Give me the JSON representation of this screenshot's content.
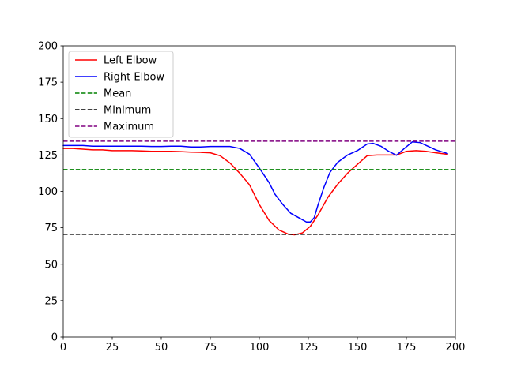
{
  "chart_data": {
    "type": "line",
    "title": "",
    "xlabel": "",
    "ylabel": "",
    "xlim": [
      0,
      200
    ],
    "ylim": [
      0,
      200
    ],
    "xticks": [
      0,
      25,
      50,
      75,
      100,
      125,
      150,
      175,
      200
    ],
    "yticks": [
      0,
      25,
      50,
      75,
      100,
      125,
      150,
      175,
      200
    ],
    "grid": false,
    "legend_position": "upper-left",
    "series": [
      {
        "name": "Left Elbow",
        "color": "#ff0000",
        "style": "solid",
        "x": [
          0,
          5,
          10,
          15,
          20,
          25,
          30,
          35,
          40,
          45,
          50,
          55,
          60,
          65,
          70,
          75,
          80,
          85,
          90,
          95,
          100,
          105,
          110,
          115,
          118,
          122,
          126,
          130,
          135,
          140,
          145,
          150,
          155,
          160,
          165,
          170,
          175,
          180,
          185,
          190,
          196
        ],
        "values": [
          129.5,
          129.5,
          129,
          128.5,
          128.5,
          128,
          128,
          128,
          127.8,
          127.5,
          127.5,
          127.5,
          127.3,
          127,
          126.8,
          126.5,
          124.5,
          119.5,
          112.5,
          104.5,
          91,
          80,
          73.5,
          70.5,
          70.2,
          71.5,
          76,
          84,
          96,
          105,
          112.5,
          118.5,
          124.5,
          125,
          125,
          125,
          127.5,
          128,
          127.5,
          126.5,
          125.5
        ]
      },
      {
        "name": "Right Elbow",
        "color": "#0000ff",
        "style": "solid",
        "x": [
          0,
          5,
          10,
          15,
          20,
          25,
          30,
          35,
          40,
          45,
          50,
          55,
          60,
          65,
          70,
          75,
          80,
          85,
          90,
          95,
          100,
          105,
          108,
          112,
          116,
          120,
          124,
          126,
          128,
          130,
          133,
          136,
          140,
          145,
          150,
          155,
          158,
          162,
          166,
          170,
          174,
          178,
          182,
          186,
          190,
          196
        ],
        "values": [
          131.5,
          131.5,
          131.5,
          131,
          131,
          131,
          131,
          131,
          131,
          130.8,
          130.8,
          131,
          131,
          130.5,
          130.5,
          130.8,
          130.8,
          130.8,
          129.5,
          125.5,
          116,
          106,
          98,
          91,
          85,
          82,
          79,
          79,
          82,
          91,
          103,
          113,
          120,
          125,
          128,
          132.5,
          133,
          131,
          127.5,
          124.8,
          129.5,
          134,
          133.5,
          131,
          128.5,
          126
        ]
      }
    ],
    "reference_lines": [
      {
        "name": "Mean",
        "value": 115,
        "color": "#008000",
        "style": "dashed"
      },
      {
        "name": "Minimum",
        "value": 70.5,
        "color": "#000000",
        "style": "dashed"
      },
      {
        "name": "Maximum",
        "value": 134.5,
        "color": "#800080",
        "style": "dashed"
      }
    ]
  }
}
